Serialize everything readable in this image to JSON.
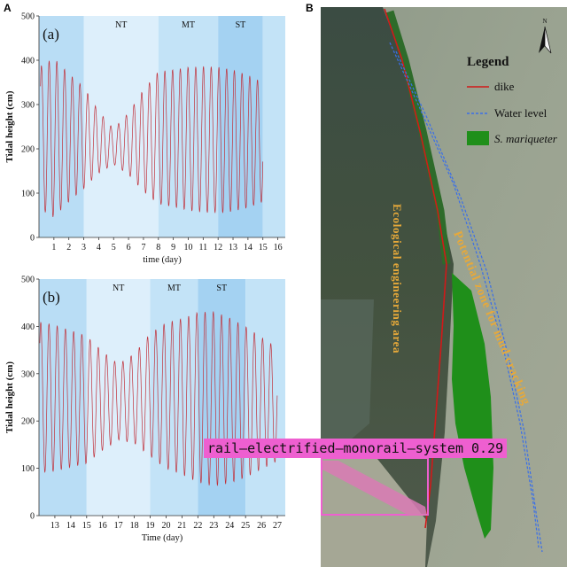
{
  "figure": {
    "left_letter": "A",
    "right_letter": "B"
  },
  "chart_data": [
    {
      "type": "line",
      "panel_label": "(a)",
      "xlabel": "time (day)",
      "ylabel": "Tidal height (cm)",
      "xlim": [
        0,
        16.5
      ],
      "ylim": [
        0,
        500
      ],
      "xticks": [
        1,
        2,
        3,
        4,
        5,
        6,
        7,
        8,
        9,
        10,
        11,
        12,
        13,
        14,
        15,
        16
      ],
      "yticks": [
        0,
        100,
        200,
        300,
        400,
        500
      ],
      "bands": [
        {
          "label": "",
          "from": 0,
          "to": 3,
          "color": "#b9ddf5"
        },
        {
          "label": "NT",
          "from": 3,
          "to": 8,
          "color": "#ddeffb"
        },
        {
          "label": "MT",
          "from": 8,
          "to": 12,
          "color": "#c3e3f7"
        },
        {
          "label": "ST",
          "from": 12,
          "to": 15,
          "color": "#a4d2f2"
        },
        {
          "label": "",
          "from": 15,
          "to": 16.5,
          "color": "#c3e3f7"
        }
      ],
      "line_color": "#c0303a",
      "x_start": 0.1,
      "x_end": 15.0,
      "period_days": 0.517,
      "amp_keys": [
        [
          0,
          160
        ],
        [
          1,
          180
        ],
        [
          2,
          145
        ],
        [
          3,
          115
        ],
        [
          4,
          70
        ],
        [
          5,
          40
        ],
        [
          6,
          70
        ],
        [
          7,
          115
        ],
        [
          8,
          150
        ],
        [
          9,
          155
        ],
        [
          10,
          162
        ],
        [
          11,
          165
        ],
        [
          12,
          165
        ],
        [
          13,
          160
        ],
        [
          14,
          150
        ],
        [
          15,
          135
        ]
      ],
      "mean_keys": [
        [
          0,
          225
        ],
        [
          3,
          225
        ],
        [
          5,
          205
        ],
        [
          8,
          225
        ],
        [
          12,
          220
        ],
        [
          15,
          215
        ]
      ]
    },
    {
      "type": "line",
      "panel_label": "(b)",
      "xlabel": "Time (day)",
      "ylabel": "Tidal height (cm)",
      "xlim": [
        12,
        27.5
      ],
      "ylim": [
        0,
        500
      ],
      "xticks": [
        13,
        14,
        15,
        16,
        17,
        18,
        19,
        20,
        21,
        22,
        23,
        24,
        25,
        26,
        27
      ],
      "yticks": [
        0,
        100,
        200,
        300,
        400,
        500
      ],
      "bands": [
        {
          "label": "",
          "from": 12,
          "to": 15,
          "color": "#b9ddf5"
        },
        {
          "label": "NT",
          "from": 15,
          "to": 19,
          "color": "#ddeffb"
        },
        {
          "label": "MT",
          "from": 19,
          "to": 22,
          "color": "#c3e3f7"
        },
        {
          "label": "ST",
          "from": 22,
          "to": 25,
          "color": "#a4d2f2"
        },
        {
          "label": "",
          "from": 25,
          "to": 27.5,
          "color": "#c3e3f7"
        }
      ],
      "line_color": "#c0303a",
      "x_start": 12.05,
      "x_end": 27.0,
      "period_days": 0.517,
      "amp_keys": [
        [
          12,
          160
        ],
        [
          13,
          155
        ],
        [
          15,
          135
        ],
        [
          16,
          105
        ],
        [
          17,
          80
        ],
        [
          18,
          95
        ],
        [
          19,
          130
        ],
        [
          20,
          155
        ],
        [
          21,
          165
        ],
        [
          22,
          180
        ],
        [
          23,
          185
        ],
        [
          24,
          175
        ],
        [
          25,
          160
        ],
        [
          26,
          140
        ],
        [
          27,
          120
        ]
      ],
      "mean_keys": [
        [
          12,
          250
        ],
        [
          15,
          245
        ],
        [
          17,
          240
        ],
        [
          19,
          255
        ],
        [
          22,
          250
        ],
        [
          25,
          240
        ],
        [
          27,
          235
        ]
      ]
    }
  ],
  "map": {
    "legend_title": "Legend",
    "legend_items": [
      {
        "label": "dike",
        "kind": "line",
        "color": "#d11919"
      },
      {
        "label": "Water level",
        "kind": "dashed",
        "color": "#3a6fe8"
      },
      {
        "label": "S. mariqueter",
        "kind": "swatch",
        "color": "#1f8f1a"
      }
    ],
    "north_label": "N",
    "vertical_text_1": "Ecological engineering area",
    "vertical_text_2": "Potential zone for mud cracking",
    "label_color": "#e7a93a"
  },
  "detection": {
    "label": "rail—electrified—monorail—system 0.29",
    "color": "#ee5fd0"
  }
}
